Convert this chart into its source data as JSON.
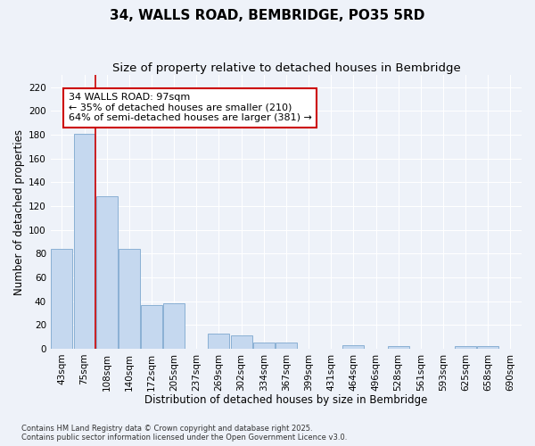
{
  "title": "34, WALLS ROAD, BEMBRIDGE, PO35 5RD",
  "subtitle": "Size of property relative to detached houses in Bembridge",
  "xlabel": "Distribution of detached houses by size in Bembridge",
  "ylabel": "Number of detached properties",
  "categories": [
    "43sqm",
    "75sqm",
    "108sqm",
    "140sqm",
    "172sqm",
    "205sqm",
    "237sqm",
    "269sqm",
    "302sqm",
    "334sqm",
    "367sqm",
    "399sqm",
    "431sqm",
    "464sqm",
    "496sqm",
    "528sqm",
    "561sqm",
    "593sqm",
    "625sqm",
    "658sqm",
    "690sqm"
  ],
  "values": [
    84,
    181,
    128,
    84,
    37,
    38,
    0,
    13,
    11,
    5,
    5,
    0,
    0,
    3,
    0,
    2,
    0,
    0,
    2,
    2,
    0
  ],
  "bar_color": "#c5d8ef",
  "bar_edge_color": "#8ab0d4",
  "red_line_index": 2,
  "annotation_line1": "34 WALLS ROAD: 97sqm",
  "annotation_line2": "← 35% of detached houses are smaller (210)",
  "annotation_line3": "64% of semi-detached houses are larger (381) →",
  "annotation_box_color": "#ffffff",
  "annotation_border_color": "#cc0000",
  "footer_text": "Contains HM Land Registry data © Crown copyright and database right 2025.\nContains public sector information licensed under the Open Government Licence v3.0.",
  "ylim": [
    0,
    230
  ],
  "yticks": [
    0,
    20,
    40,
    60,
    80,
    100,
    120,
    140,
    160,
    180,
    200,
    220
  ],
  "background_color": "#eef2f9",
  "grid_color": "#ffffff",
  "title_fontsize": 11,
  "subtitle_fontsize": 9.5,
  "axis_label_fontsize": 8.5,
  "tick_fontsize": 7.5,
  "annotation_fontsize": 8,
  "footer_fontsize": 6
}
